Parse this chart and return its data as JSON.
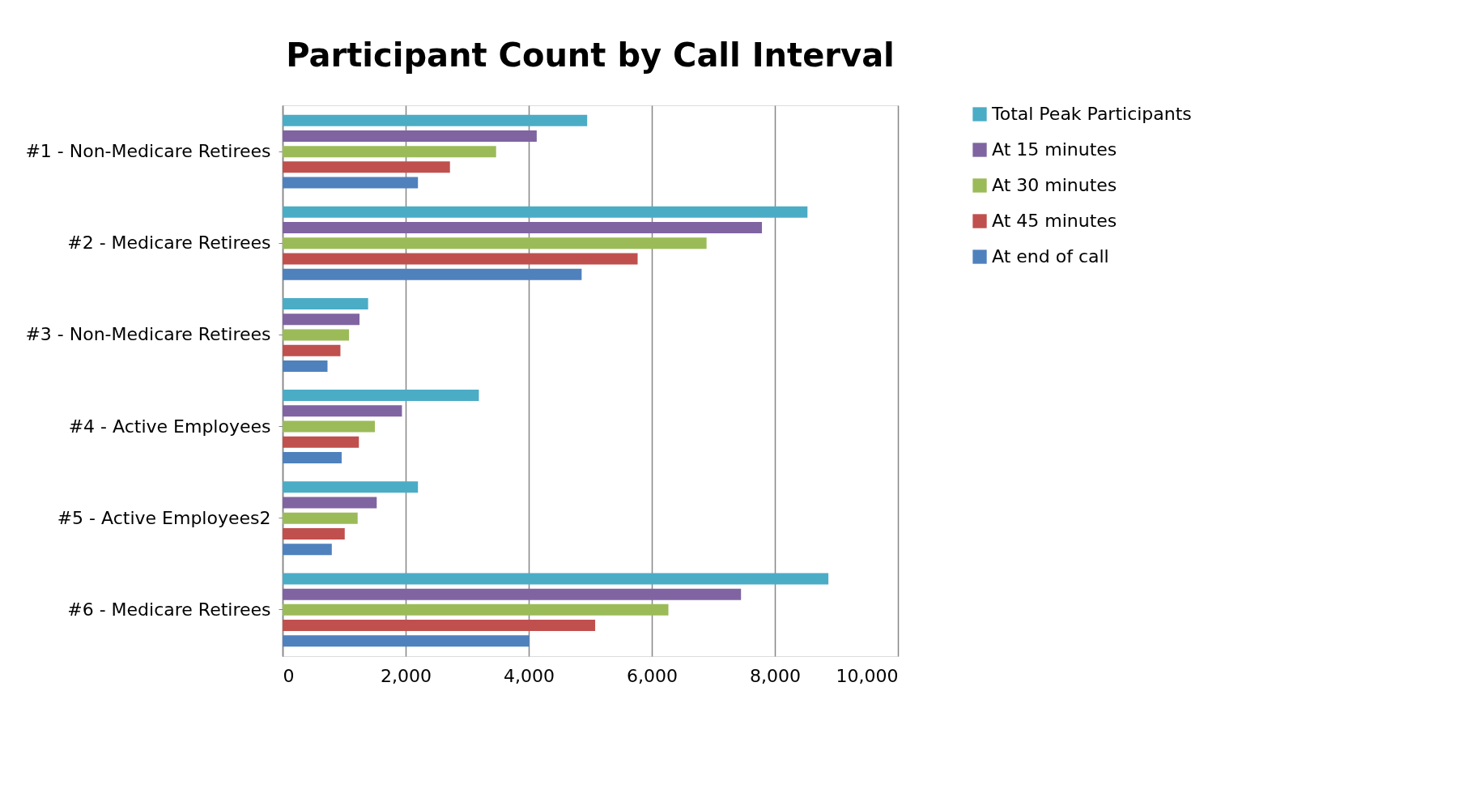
{
  "chart_data": {
    "type": "bar",
    "orientation": "horizontal",
    "title": "Participant Count by Call Interval",
    "categories": [
      "#1 - Non-Medicare Retirees",
      "#2 - Medicare Retirees",
      "#3 - Non-Medicare Retirees",
      "#4 - Active Employees",
      "#5 - Active Employees2",
      "#6 - Medicare Retirees"
    ],
    "series": [
      {
        "name": "Total Peak Participants",
        "color": "#4bacc6",
        "values": [
          4950,
          8530,
          1390,
          3190,
          2200,
          8870
        ]
      },
      {
        "name": "At 15 minutes",
        "color": "#8064a2",
        "values": [
          4130,
          7790,
          1250,
          1940,
          1530,
          7450
        ]
      },
      {
        "name": "At 30 minutes",
        "color": "#9bbb59",
        "values": [
          3470,
          6890,
          1080,
          1500,
          1220,
          6270
        ]
      },
      {
        "name": "At 45 minutes",
        "color": "#c0504d",
        "values": [
          2720,
          5770,
          940,
          1240,
          1010,
          5080
        ]
      },
      {
        "name": "At end of call",
        "color": "#4f81bd",
        "values": [
          2200,
          4860,
          730,
          960,
          800,
          4010
        ]
      }
    ],
    "xlim": [
      0,
      10000
    ],
    "xticks": [
      0,
      {
        "value": 2000,
        "label": "2,000"
      },
      {
        "value": 4000,
        "label": "4,000"
      },
      {
        "value": 6000,
        "label": "6,000"
      },
      {
        "value": 8000,
        "label": "8,000"
      },
      {
        "value": 10000,
        "label": "10,000"
      }
    ],
    "grid": "x",
    "legend": "right"
  }
}
